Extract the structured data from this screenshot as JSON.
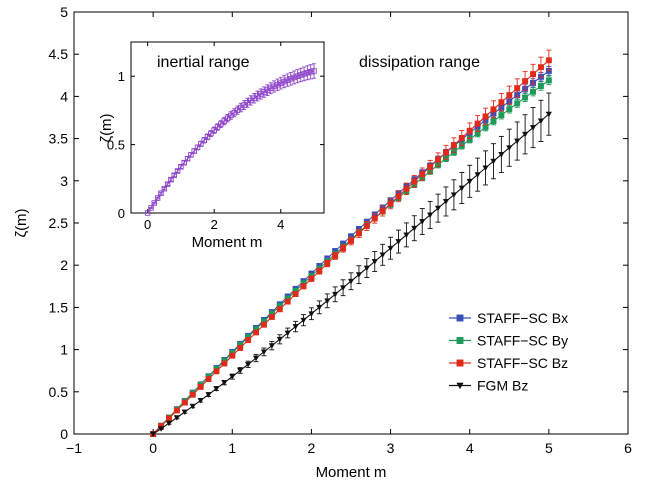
{
  "chart_data": [
    {
      "type": "line",
      "xlabel": "Moment m",
      "ylabel": "ζ(m)",
      "xlim": [
        -1,
        6
      ],
      "ylim": [
        0,
        5
      ],
      "xticks": [
        -1,
        0,
        1,
        2,
        3,
        4,
        5,
        6
      ],
      "yticks": [
        0,
        0.5,
        1,
        1.5,
        2,
        2.5,
        3,
        3.5,
        4,
        4.5,
        5
      ],
      "xtick_labels": [
        "−1",
        "0",
        "1",
        "2",
        "3",
        "4",
        "5",
        "6"
      ],
      "ytick_labels": [
        "0",
        "0.5",
        "1",
        "1.5",
        "2",
        "2.5",
        "3",
        "3.5",
        "4",
        "4.5",
        "5"
      ],
      "grid": false,
      "legend_position": "bottom-right",
      "annotations": [
        "dissipation range"
      ],
      "x": [
        0,
        0.1,
        0.2,
        0.3,
        0.4,
        0.5,
        0.6,
        0.7,
        0.8,
        0.9,
        1.0,
        1.1,
        1.2,
        1.3,
        1.4,
        1.5,
        1.6,
        1.7,
        1.8,
        1.9,
        2.0,
        2.1,
        2.2,
        2.3,
        2.4,
        2.5,
        2.6,
        2.7,
        2.8,
        2.9,
        3.0,
        3.1,
        3.2,
        3.3,
        3.4,
        3.5,
        3.6,
        3.7,
        3.8,
        3.9,
        4.0,
        4.1,
        4.2,
        4.3,
        4.4,
        4.5,
        4.6,
        4.7,
        4.8,
        4.9,
        5.0
      ],
      "series": [
        {
          "name": "STAFF−SC Bx",
          "color": "#3b4fb8",
          "marker": "square",
          "values": [
            0,
            0.098,
            0.196,
            0.294,
            0.392,
            0.49,
            0.587,
            0.684,
            0.781,
            0.877,
            0.973,
            1.068,
            1.163,
            1.257,
            1.351,
            1.444,
            1.537,
            1.629,
            1.72,
            1.811,
            1.901,
            1.991,
            2.08,
            2.168,
            2.256,
            2.343,
            2.429,
            2.515,
            2.6,
            2.684,
            2.768,
            2.851,
            2.933,
            3.015,
            3.096,
            3.176,
            3.256,
            3.335,
            3.413,
            3.491,
            3.568,
            3.644,
            3.72,
            3.795,
            3.869,
            3.943,
            4.016,
            4.089,
            4.16,
            4.232,
            4.302
          ],
          "errors": [
            0,
            0.005,
            0.005,
            0.006,
            0.006,
            0.007,
            0.007,
            0.008,
            0.009,
            0.01,
            0.011,
            0.012,
            0.013,
            0.014,
            0.015,
            0.016,
            0.017,
            0.018,
            0.019,
            0.02,
            0.021,
            0.022,
            0.023,
            0.024,
            0.025,
            0.026,
            0.027,
            0.028,
            0.029,
            0.03,
            0.031,
            0.032,
            0.033,
            0.034,
            0.035,
            0.036,
            0.037,
            0.038,
            0.039,
            0.04,
            0.041,
            0.042,
            0.043,
            0.044,
            0.045,
            0.046,
            0.047,
            0.048,
            0.049,
            0.05,
            0.051
          ]
        },
        {
          "name": "STAFF−SC By",
          "color": "#1f9a5a",
          "marker": "square",
          "values": [
            0,
            0.097,
            0.195,
            0.292,
            0.388,
            0.485,
            0.581,
            0.677,
            0.772,
            0.867,
            0.961,
            1.055,
            1.148,
            1.241,
            1.333,
            1.425,
            1.515,
            1.606,
            1.695,
            1.784,
            1.873,
            1.96,
            2.047,
            2.134,
            2.219,
            2.304,
            2.388,
            2.472,
            2.554,
            2.636,
            2.717,
            2.798,
            2.878,
            2.957,
            3.035,
            3.113,
            3.19,
            3.266,
            3.341,
            3.416,
            3.49,
            3.563,
            3.635,
            3.707,
            3.778,
            3.849,
            3.918,
            3.987,
            4.055,
            4.123,
            4.19
          ],
          "errors": [
            0,
            0.005,
            0.005,
            0.006,
            0.006,
            0.007,
            0.007,
            0.008,
            0.009,
            0.01,
            0.011,
            0.012,
            0.013,
            0.014,
            0.015,
            0.016,
            0.017,
            0.018,
            0.019,
            0.02,
            0.021,
            0.022,
            0.023,
            0.024,
            0.025,
            0.026,
            0.027,
            0.028,
            0.029,
            0.03,
            0.031,
            0.032,
            0.033,
            0.034,
            0.035,
            0.036,
            0.037,
            0.038,
            0.039,
            0.04,
            0.041,
            0.042,
            0.043,
            0.044,
            0.045,
            0.046,
            0.047,
            0.048,
            0.049,
            0.05,
            0.051
          ]
        },
        {
          "name": "STAFF−SC Bz",
          "color": "#e02a1a",
          "marker": "square",
          "values": [
            0,
            0.093,
            0.186,
            0.279,
            0.372,
            0.465,
            0.558,
            0.651,
            0.743,
            0.836,
            0.928,
            1.02,
            1.112,
            1.204,
            1.295,
            1.387,
            1.478,
            1.569,
            1.659,
            1.75,
            1.84,
            1.93,
            2.02,
            2.11,
            2.199,
            2.288,
            2.377,
            2.465,
            2.554,
            2.642,
            2.73,
            2.817,
            2.905,
            2.992,
            3.078,
            3.165,
            3.251,
            3.337,
            3.423,
            3.508,
            3.593,
            3.678,
            3.763,
            3.847,
            3.931,
            4.015,
            4.098,
            4.181,
            4.264,
            4.346,
            4.428
          ],
          "errors": [
            0,
            0.005,
            0.005,
            0.006,
            0.006,
            0.007,
            0.007,
            0.008,
            0.009,
            0.01,
            0.012,
            0.014,
            0.016,
            0.018,
            0.02,
            0.022,
            0.024,
            0.026,
            0.028,
            0.03,
            0.032,
            0.035,
            0.038,
            0.041,
            0.044,
            0.047,
            0.05,
            0.053,
            0.056,
            0.059,
            0.062,
            0.065,
            0.068,
            0.071,
            0.074,
            0.077,
            0.08,
            0.083,
            0.086,
            0.089,
            0.092,
            0.095,
            0.098,
            0.101,
            0.104,
            0.107,
            0.11,
            0.113,
            0.116,
            0.119,
            0.12
          ]
        },
        {
          "name": "FGM Bz",
          "color": "#111111",
          "marker": "triangle-down",
          "values": [
            0,
            0.063,
            0.128,
            0.194,
            0.261,
            0.329,
            0.398,
            0.467,
            0.538,
            0.609,
            0.68,
            0.753,
            0.825,
            0.899,
            0.973,
            1.047,
            1.122,
            1.197,
            1.273,
            1.348,
            1.425,
            1.501,
            1.578,
            1.655,
            1.733,
            1.81,
            1.888,
            1.966,
            2.044,
            2.123,
            2.201,
            2.28,
            2.359,
            2.438,
            2.517,
            2.596,
            2.676,
            2.755,
            2.834,
            2.914,
            2.994,
            3.073,
            3.153,
            3.232,
            3.312,
            3.392,
            3.471,
            3.551,
            3.631,
            3.71,
            3.79
          ],
          "errors": [
            0,
            0.01,
            0.012,
            0.014,
            0.016,
            0.018,
            0.02,
            0.022,
            0.024,
            0.026,
            0.03,
            0.034,
            0.038,
            0.042,
            0.046,
            0.05,
            0.054,
            0.058,
            0.062,
            0.066,
            0.07,
            0.076,
            0.082,
            0.088,
            0.094,
            0.1,
            0.106,
            0.112,
            0.118,
            0.124,
            0.13,
            0.136,
            0.142,
            0.148,
            0.154,
            0.16,
            0.166,
            0.172,
            0.178,
            0.184,
            0.19,
            0.196,
            0.202,
            0.208,
            0.214,
            0.22,
            0.226,
            0.232,
            0.238,
            0.244,
            0.25
          ]
        }
      ]
    },
    {
      "type": "line",
      "xlabel": "Moment m",
      "ylabel": "ζ(m)",
      "xlim": [
        -0.5,
        5.3
      ],
      "ylim": [
        0,
        1.25
      ],
      "xticks": [
        0,
        2,
        4
      ],
      "yticks": [
        0,
        0.5,
        1
      ],
      "xtick_labels": [
        "0",
        "2",
        "4"
      ],
      "ytick_labels": [
        "0",
        "0.5",
        "1"
      ],
      "annotations": [
        "inertial range"
      ],
      "x": [
        0,
        0.1,
        0.2,
        0.3,
        0.4,
        0.5,
        0.6,
        0.7,
        0.8,
        0.9,
        1.0,
        1.1,
        1.2,
        1.3,
        1.4,
        1.5,
        1.6,
        1.7,
        1.8,
        1.9,
        2.0,
        2.1,
        2.2,
        2.3,
        2.4,
        2.5,
        2.6,
        2.7,
        2.8,
        2.9,
        3.0,
        3.1,
        3.2,
        3.3,
        3.4,
        3.5,
        3.6,
        3.7,
        3.8,
        3.9,
        4.0,
        4.1,
        4.2,
        4.3,
        4.4,
        4.5,
        4.6,
        4.7,
        4.8,
        4.9,
        5.0
      ],
      "series": [
        {
          "color": "#8e44c9",
          "marker": "open-square",
          "values": [
            0,
            0.037,
            0.073,
            0.109,
            0.144,
            0.178,
            0.211,
            0.244,
            0.276,
            0.307,
            0.338,
            0.368,
            0.397,
            0.425,
            0.453,
            0.48,
            0.506,
            0.532,
            0.557,
            0.581,
            0.605,
            0.628,
            0.65,
            0.672,
            0.693,
            0.713,
            0.733,
            0.752,
            0.771,
            0.789,
            0.806,
            0.823,
            0.839,
            0.855,
            0.87,
            0.884,
            0.898,
            0.912,
            0.925,
            0.937,
            0.949,
            0.96,
            0.971,
            0.981,
            0.991,
            1.0,
            1.009,
            1.017,
            1.025,
            1.032,
            1.038
          ],
          "errors": [
            0,
            0.004,
            0.005,
            0.006,
            0.007,
            0.008,
            0.009,
            0.01,
            0.011,
            0.012,
            0.013,
            0.014,
            0.015,
            0.016,
            0.017,
            0.018,
            0.019,
            0.02,
            0.021,
            0.022,
            0.023,
            0.024,
            0.025,
            0.026,
            0.027,
            0.028,
            0.029,
            0.03,
            0.031,
            0.032,
            0.033,
            0.034,
            0.035,
            0.036,
            0.037,
            0.038,
            0.039,
            0.04,
            0.041,
            0.042,
            0.043,
            0.044,
            0.045,
            0.046,
            0.047,
            0.048,
            0.049,
            0.05,
            0.051,
            0.052,
            0.053
          ]
        }
      ]
    }
  ]
}
